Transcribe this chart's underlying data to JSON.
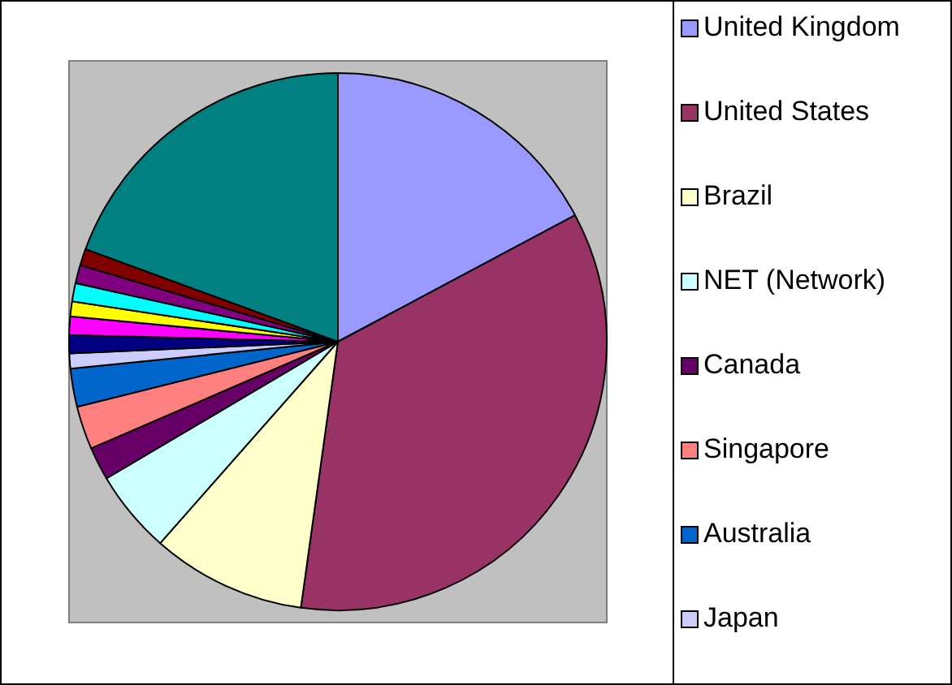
{
  "chart_data": {
    "type": "pie",
    "categories": [
      "United Kingdom",
      "United States",
      "Brazil",
      "NET (Network)",
      "Canada",
      "Singapore",
      "Australia",
      "Japan",
      null,
      null,
      null,
      null,
      null,
      null,
      null
    ],
    "values": [
      17.2,
      35.0,
      9.3,
      5.0,
      2.0,
      2.6,
      2.3,
      0.9,
      1.1,
      1.1,
      0.9,
      1.1,
      1.1,
      1.0,
      19.4
    ],
    "colors": [
      "#9999ff",
      "#993366",
      "#ffffcc",
      "#ccffff",
      "#660066",
      "#ff8080",
      "#0066cc",
      "#ccccff",
      "#000080",
      "#ff00ff",
      "#ffff00",
      "#00ffff",
      "#800080",
      "#800000",
      "#008080"
    ],
    "legend": "right"
  }
}
